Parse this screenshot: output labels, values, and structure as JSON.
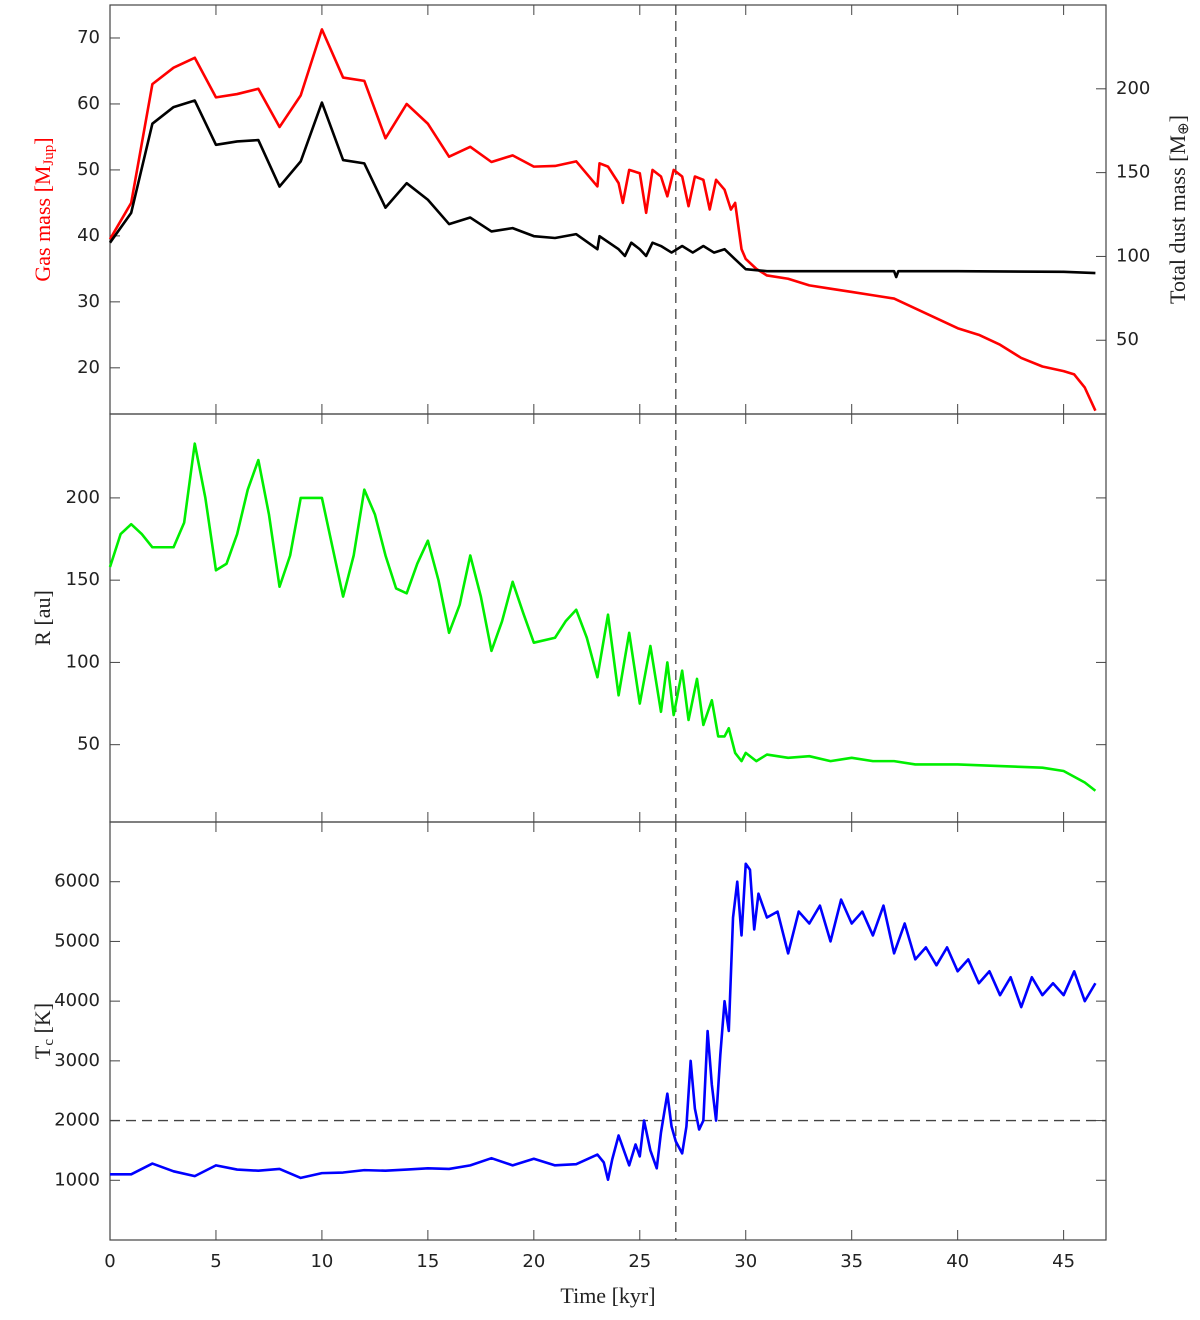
{
  "chart_data": [
    {
      "type": "line",
      "ylabel": [
        "Gas mass [M",
        "Jup",
        "]"
      ],
      "ylabel_color": "#ff0000",
      "y2label": [
        "Total dust mass [M",
        "⊕",
        "]"
      ],
      "xlim": [
        0,
        47
      ],
      "xticks": [
        0,
        5,
        10,
        15,
        20,
        25,
        30,
        35,
        40,
        45
      ],
      "ylim": [
        13,
        75
      ],
      "yticks": [
        20,
        30,
        40,
        50,
        60,
        70
      ],
      "y2lim": [
        6,
        250
      ],
      "y2ticks": [
        50,
        100,
        150,
        200
      ],
      "vline": 26.7,
      "series": [
        {
          "color": "#ff0000",
          "x": [
            0,
            1,
            2,
            3,
            4,
            5,
            6,
            7,
            8,
            9,
            10,
            11,
            12,
            13,
            14,
            15,
            16,
            17,
            18,
            19,
            20,
            21,
            22,
            23,
            23.1,
            23.5,
            24,
            24.2,
            24.5,
            25,
            25.3,
            25.6,
            26,
            26.3,
            26.6,
            27,
            27.3,
            27.6,
            28,
            28.3,
            28.6,
            29,
            29.3,
            29.5,
            29.8,
            30,
            30.5,
            31,
            32,
            33,
            34,
            35,
            36,
            37,
            38,
            39,
            40,
            41,
            42,
            43,
            44,
            45,
            45.5,
            46,
            46.5
          ],
          "values": [
            39.5,
            45,
            63,
            65.5,
            67,
            61,
            61.5,
            62.3,
            56.5,
            61.3,
            71.3,
            64,
            63.5,
            54.8,
            60,
            57,
            52,
            53.5,
            51.2,
            52.2,
            50.5,
            50.6,
            51.3,
            47.5,
            51,
            50.5,
            48,
            45,
            50,
            49.5,
            43.5,
            50,
            49,
            46,
            50,
            49,
            44.5,
            49,
            48.5,
            44,
            48.5,
            47,
            44,
            45,
            38,
            36.5,
            35,
            34,
            33.5,
            32.5,
            32,
            31.5,
            31,
            30.5,
            29,
            27.5,
            26,
            25,
            23.5,
            21.5,
            20.2,
            19.5,
            19,
            17,
            13.5
          ]
        },
        {
          "color": "#000000",
          "axis": "y2",
          "x": [
            0,
            1,
            2,
            3,
            4,
            5,
            6,
            7,
            8,
            9,
            10,
            11,
            12,
            13,
            14,
            15,
            16,
            17,
            18,
            19,
            20,
            21,
            22,
            23,
            23.1,
            24,
            24.3,
            24.6,
            25,
            25.3,
            25.6,
            26,
            26.5,
            27,
            27.5,
            28,
            28.5,
            29,
            29.5,
            30,
            31,
            32,
            37,
            37.1,
            37.2,
            40,
            45,
            46.5
          ],
          "values": [
            108.2,
            126,
            179.2,
            189.1,
            193,
            166.6,
            168.6,
            169.4,
            141.7,
            156.7,
            191.8,
            157.5,
            155.5,
            129.1,
            143.7,
            133.8,
            119.3,
            123.2,
            114.9,
            116.9,
            112.1,
            111,
            113.3,
            104.3,
            112.1,
            104.3,
            100.3,
            108.2,
            104.3,
            100.3,
            108.2,
            106.2,
            102.3,
            106.2,
            102.3,
            106.2,
            102.3,
            104.3,
            98.3,
            92.4,
            91.2,
            91.2,
            91.2,
            87.7,
            91.2,
            91.2,
            90.8,
            90.1
          ]
        }
      ]
    },
    {
      "type": "line",
      "ylabel": [
        "R [au]"
      ],
      "xlim": [
        0,
        47
      ],
      "xticks": [
        0,
        5,
        10,
        15,
        20,
        25,
        30,
        35,
        40,
        45
      ],
      "ylim": [
        3,
        251
      ],
      "yticks": [
        50,
        100,
        150,
        200
      ],
      "vline": 26.7,
      "series": [
        {
          "color": "#00ee00",
          "x": [
            0,
            0.5,
            1,
            1.5,
            2,
            3,
            3.5,
            4,
            4.5,
            5,
            5.5,
            6,
            6.5,
            7,
            7.5,
            8,
            8.5,
            9,
            10,
            10.5,
            11,
            11.5,
            12,
            12.5,
            13,
            13.5,
            14,
            14.5,
            15,
            15.5,
            16,
            16.5,
            17,
            17.5,
            18,
            18.5,
            19,
            19.5,
            20,
            21,
            21.5,
            22,
            22.5,
            23,
            23.5,
            24,
            24.5,
            25,
            25.5,
            26,
            26.3,
            26.6,
            27,
            27.3,
            27.7,
            28,
            28.4,
            28.7,
            29,
            29.2,
            29.5,
            29.8,
            30,
            30.5,
            31,
            32,
            33,
            34,
            35,
            36,
            37,
            38,
            40,
            42,
            44,
            45,
            46,
            46.5
          ],
          "values": [
            158,
            178,
            184,
            178,
            170,
            170,
            185,
            233,
            200,
            156,
            160,
            178,
            205,
            223,
            190,
            146,
            165,
            200,
            200,
            170,
            140,
            165,
            205,
            190,
            165,
            145,
            142,
            160,
            174,
            150,
            118,
            135,
            165,
            140,
            107,
            125,
            149,
            130,
            112,
            115,
            125,
            132,
            115,
            91,
            129,
            80,
            118,
            75,
            110,
            70,
            100,
            68,
            95,
            65,
            90,
            62,
            77,
            55,
            55,
            60,
            45,
            40,
            45,
            40,
            44,
            42,
            43,
            40,
            42,
            40,
            40,
            38,
            38,
            37,
            36,
            34,
            27,
            22
          ]
        }
      ]
    },
    {
      "type": "line",
      "ylabel": [
        "T",
        "c",
        " [K]"
      ],
      "xlabel": "Time [kyr]",
      "xlim": [
        0,
        47
      ],
      "xticks": [
        0,
        5,
        10,
        15,
        20,
        25,
        30,
        35,
        40,
        45
      ],
      "ylim": [
        0,
        7000
      ],
      "yticks": [
        1000,
        2000,
        3000,
        4000,
        5000,
        6000
      ],
      "vline": 26.7,
      "hline": 2000,
      "series": [
        {
          "color": "#0000ff",
          "x": [
            0,
            1,
            2,
            3,
            4,
            5,
            6,
            7,
            8,
            9,
            10,
            11,
            12,
            13,
            14,
            15,
            16,
            17,
            18,
            19,
            20,
            21,
            22,
            23,
            23.3,
            23.5,
            23.7,
            24,
            24.3,
            24.5,
            24.8,
            25,
            25.2,
            25.5,
            25.8,
            26,
            26.3,
            26.5,
            26.7,
            27,
            27.2,
            27.4,
            27.6,
            27.8,
            28,
            28.2,
            28.4,
            28.6,
            28.8,
            29,
            29.2,
            29.4,
            29.6,
            29.8,
            30,
            30.2,
            30.4,
            30.6,
            31,
            31.5,
            32,
            32.5,
            33,
            33.5,
            34,
            34.5,
            35,
            35.5,
            36,
            36.5,
            37,
            37.5,
            38,
            38.5,
            39,
            39.5,
            40,
            40.5,
            41,
            41.5,
            42,
            42.5,
            43,
            43.5,
            44,
            44.5,
            45,
            45.5,
            46,
            46.5
          ],
          "values": [
            1100,
            1100,
            1280,
            1150,
            1070,
            1250,
            1180,
            1160,
            1190,
            1040,
            1120,
            1130,
            1170,
            1160,
            1180,
            1200,
            1190,
            1250,
            1370,
            1250,
            1360,
            1250,
            1270,
            1430,
            1300,
            1010,
            1350,
            1750,
            1450,
            1250,
            1600,
            1400,
            2000,
            1500,
            1200,
            1800,
            2450,
            1900,
            1650,
            1450,
            1900,
            3000,
            2200,
            1850,
            2000,
            3500,
            2600,
            2000,
            3100,
            4000,
            3500,
            5400,
            6000,
            5100,
            6300,
            6200,
            5200,
            5800,
            5400,
            5500,
            4800,
            5500,
            5300,
            5600,
            5000,
            5700,
            5300,
            5500,
            5100,
            5600,
            4800,
            5300,
            4700,
            4900,
            4600,
            4900,
            4500,
            4700,
            4300,
            4500,
            4100,
            4400,
            3900,
            4400,
            4100,
            4300,
            4100,
            4500,
            4000,
            4300
          ]
        }
      ]
    }
  ]
}
